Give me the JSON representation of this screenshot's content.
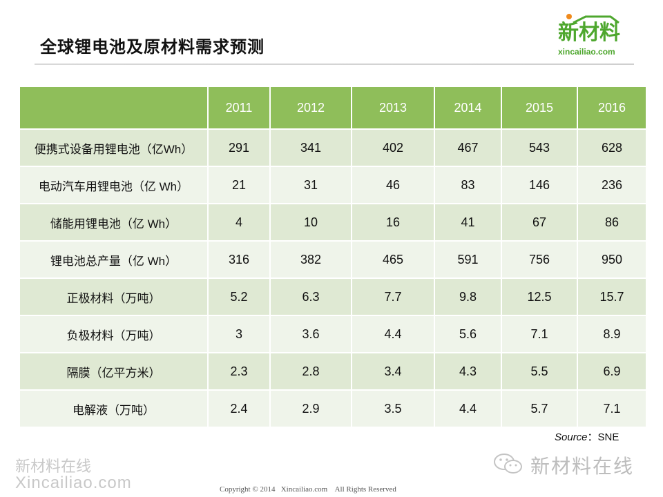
{
  "page": {
    "title": "全球锂电池及原材料需求预测"
  },
  "logo": {
    "brand": "新材料",
    "url": "xincailiao.com",
    "accent_color": "#4ea72e",
    "dot_color": "#f08a1c",
    "icon": "house-roof-icon"
  },
  "table": {
    "header_color": "#8fbe5a",
    "columns": [
      "",
      "2011",
      "2012",
      "2013",
      "2014",
      "2015",
      "2016"
    ],
    "rows": [
      {
        "label": "便携式设备用锂电池（亿Wh）",
        "values": [
          "291",
          "341",
          "402",
          "467",
          "543",
          "628"
        ]
      },
      {
        "label": "电动汽车用锂电池（亿 Wh）",
        "values": [
          "21",
          "31",
          "46",
          "83",
          "146",
          "236"
        ]
      },
      {
        "label": "储能用锂电池（亿 Wh）",
        "values": [
          "4",
          "10",
          "16",
          "41",
          "67",
          "86"
        ]
      },
      {
        "label": "锂电池总产量（亿 Wh）",
        "values": [
          "316",
          "382",
          "465",
          "591",
          "756",
          "950"
        ]
      },
      {
        "label": "正极材料（万吨）",
        "values": [
          "5.2",
          "6.3",
          "7.7",
          "9.8",
          "12.5",
          "15.7"
        ]
      },
      {
        "label": "负极材料（万吨）",
        "values": [
          "3",
          "3.6",
          "4.4",
          "5.6",
          "7.1",
          "8.9"
        ]
      },
      {
        "label": "隔膜（亿平方米）",
        "values": [
          "2.3",
          "2.8",
          "3.4",
          "4.3",
          "5.5",
          "6.9"
        ]
      },
      {
        "label": "电解液（万吨）",
        "values": [
          "2.4",
          "2.9",
          "3.5",
          "4.4",
          "5.7",
          "7.1"
        ]
      }
    ]
  },
  "source": {
    "label": "Source",
    "separator": "：",
    "value": "SNE"
  },
  "watermarks": {
    "left_cn": "新材料在线",
    "left_en": "Xincailiao.com",
    "wechat_icon": "wechat-icon",
    "wechat_text": "新材料在线"
  },
  "footer": {
    "copyright": "Copyright © 2014   Xincailiao.com    All Rights Reserved"
  }
}
